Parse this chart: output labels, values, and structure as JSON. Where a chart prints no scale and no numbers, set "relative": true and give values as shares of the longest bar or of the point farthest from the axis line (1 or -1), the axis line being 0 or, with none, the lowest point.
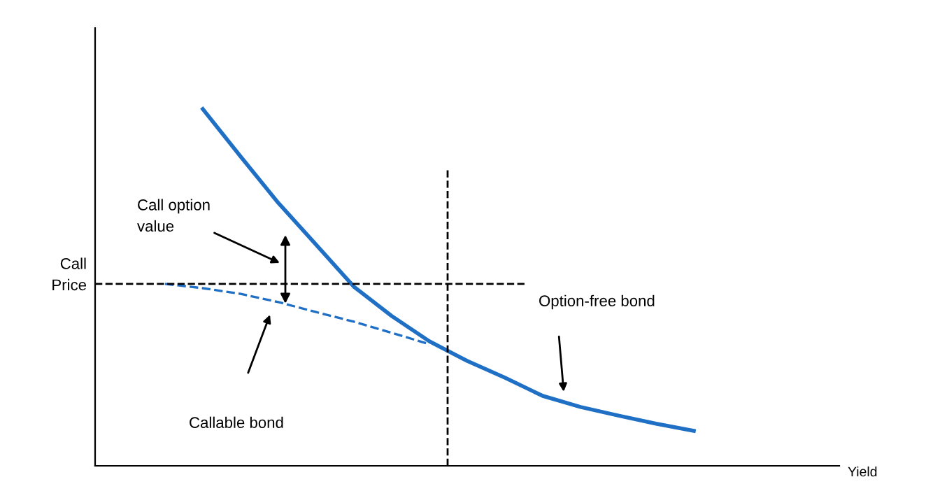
{
  "chart_data": {
    "type": "line",
    "relative": true,
    "ylabel": "Call Price",
    "categories": [
      null,
      null,
      null,
      null,
      null,
      null,
      null,
      null,
      null,
      null,
      null,
      null,
      null,
      null,
      null,
      null
    ],
    "series": [
      {
        "color": "#1f6fc5",
        "line_style": "solid",
        "values": [
          null,
          1.0,
          0.867,
          0.737,
          0.62,
          0.502,
          0.42,
          0.349,
          0.294,
          0.247,
          0.196,
          0.165,
          0.141,
          0.118,
          0.098,
          null
        ]
      },
      {
        "color": "#1f6fc5",
        "line_style": "dashed",
        "values": [
          0.51,
          0.498,
          0.482,
          0.459,
          0.431,
          0.404,
          0.373,
          0.341,
          null,
          null,
          null,
          null,
          null,
          null,
          null,
          null
        ]
      }
    ],
    "ref_lines": [
      {
        "axis": "y",
        "value": 0.51,
        "color": "#000000",
        "line_style": "dashed"
      }
    ],
    "annotations": [
      "Call option\nvalue",
      "Option-free bond",
      "Callable bond",
      "Yield"
    ],
    "legend": false,
    "grid": false,
    "marker": "none"
  }
}
